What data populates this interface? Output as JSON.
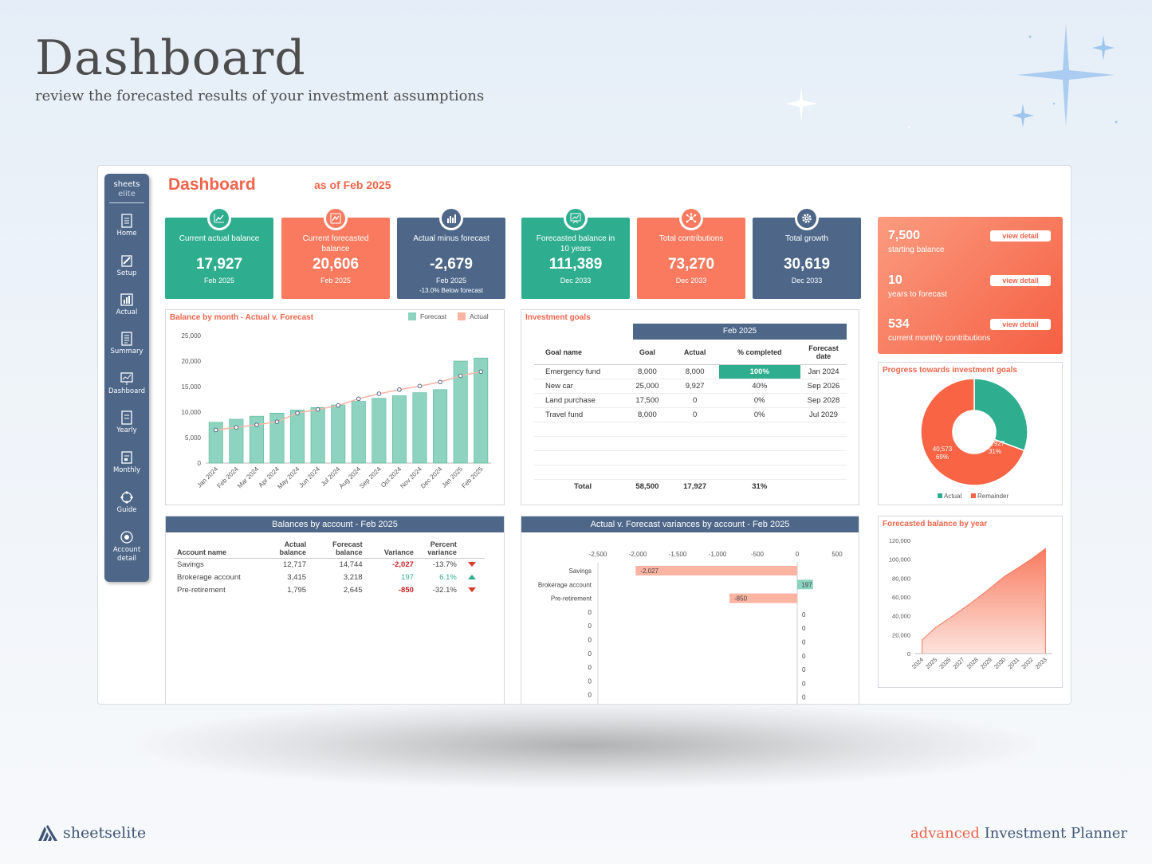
{
  "hero": {
    "title": "Dashboard",
    "subtitle": "review the forecasted results of your investment assumptions"
  },
  "sidebar": {
    "brand_top": "sheets",
    "brand_bottom": "elite",
    "items": [
      {
        "label": "Home",
        "icon": "home-icon"
      },
      {
        "label": "Setup",
        "icon": "setup-icon"
      },
      {
        "label": "Actual",
        "icon": "actual-icon"
      },
      {
        "label": "Summary",
        "icon": "summary-icon"
      },
      {
        "label": "Dashboard",
        "icon": "dashboard-icon"
      },
      {
        "label": "Yearly",
        "icon": "yearly-icon"
      },
      {
        "label": "Monthly",
        "icon": "monthly-icon"
      },
      {
        "label": "Guide",
        "icon": "guide-icon"
      },
      {
        "label": "Account detail",
        "icon": "account-detail-icon"
      }
    ]
  },
  "header": {
    "title": "Dashboard",
    "as_of": "as of Feb 2025"
  },
  "kpis": [
    {
      "label": "Current actual balance",
      "value": "17,927",
      "date": "Feb 2025",
      "note": "",
      "color": "#2fae8f",
      "icon": "line-chart-icon"
    },
    {
      "label": "Current forecasted balance",
      "value": "20,606",
      "date": "Feb 2025",
      "note": "",
      "color": "#f97a5e",
      "icon": "trend-chart-icon"
    },
    {
      "label": "Actual minus forecast",
      "value": "-2,679",
      "date": "Feb 2025",
      "note": "-13.0%   Below forecast",
      "color": "#4e6789",
      "icon": "bar-chart-icon"
    },
    {
      "label": "Forecasted balance in 10 years",
      "value": "111,389",
      "date": "Dec 2033",
      "note": "",
      "color": "#2fae8f",
      "icon": "presentation-icon"
    },
    {
      "label": "Total contributions",
      "value": "73,270",
      "date": "Dec 2033",
      "note": "",
      "color": "#f97a5e",
      "icon": "network-icon"
    },
    {
      "label": "Total growth",
      "value": "30,619",
      "date": "Dec 2033",
      "note": "",
      "color": "#4e6789",
      "icon": "gear-icon"
    }
  ],
  "info_card": {
    "rows": [
      {
        "value": "7,500",
        "label": "starting balance",
        "button": "view detail"
      },
      {
        "value": "10",
        "label": "years to forecast",
        "button": "view detail"
      },
      {
        "value": "534",
        "label": "current monthly contributions",
        "button": "view detail"
      }
    ]
  },
  "balance_chart": {
    "title": "Balance by month - Actual v. Forecast",
    "legend": [
      "Forecast",
      "Actual"
    ]
  },
  "goals": {
    "title": "Investment goals",
    "period": "Feb 2025",
    "headers": [
      "Goal name",
      "Goal",
      "Actual",
      "% completed",
      "Forecast date"
    ],
    "rows": [
      {
        "name": "Emergency fund",
        "goal": "8,000",
        "actual": "8,000",
        "pct": "100%",
        "date": "Jan 2024"
      },
      {
        "name": "New car",
        "goal": "25,000",
        "actual": "9,927",
        "pct": "40%",
        "date": "Sep 2026"
      },
      {
        "name": "Land purchase",
        "goal": "17,500",
        "actual": "0",
        "pct": "0%",
        "date": "Sep 2028"
      },
      {
        "name": "Travel fund",
        "goal": "8,000",
        "actual": "0",
        "pct": "0%",
        "date": "Jul 2029"
      }
    ],
    "total": {
      "label": "Total",
      "goal": "58,500",
      "actual": "17,927",
      "pct": "31%"
    }
  },
  "progress": {
    "title": "Progress towards investment goals",
    "actual_label": "17,927",
    "actual_pct": "31%",
    "remainder_label": "40,573",
    "remainder_pct": "69%",
    "legend": [
      "Actual",
      "Remainder"
    ]
  },
  "accounts": {
    "title": "Balances by account - Feb 2025",
    "headers": [
      "Account name",
      "Actual balance",
      "Forecast balance",
      "Variance",
      "Percent variance"
    ],
    "rows": [
      {
        "name": "Savings",
        "actual": "12,717",
        "forecast": "14,744",
        "variance": "-2,027",
        "pct": "-13.7%",
        "dir": "down"
      },
      {
        "name": "Brokerage account",
        "actual": "3,415",
        "forecast": "3,218",
        "variance": "197",
        "pct": "6.1%",
        "dir": "up"
      },
      {
        "name": "Pre-retirement",
        "actual": "1,795",
        "forecast": "2,645",
        "variance": "-850",
        "pct": "-32.1%",
        "dir": "down"
      }
    ]
  },
  "variance_chart": {
    "title": "Actual v. Forecast variances by account - Feb 2025",
    "zero_label": "0"
  },
  "yearly_chart": {
    "title": "Forecasted balance by year"
  },
  "footer": {
    "brand_a": "sheets",
    "brand_b": "elite",
    "right_accent": "advanced",
    "right_text": " Investment Planner"
  },
  "colors": {
    "green": "#2fae8f",
    "coral": "#f97a5e",
    "slate": "#4e6789",
    "accent": "#f0654b"
  },
  "chart_data": [
    {
      "type": "bar",
      "title": "Balance by month - Actual v. Forecast",
      "categories": [
        "Jan 2024",
        "Feb 2024",
        "Mar 2024",
        "Apr 2024",
        "May 2024",
        "Jun 2024",
        "Jul 2024",
        "Aug 2024",
        "Sep 2024",
        "Oct 2024",
        "Nov 2024",
        "Dec 2024",
        "Jan 2025",
        "Feb 2025"
      ],
      "series": [
        {
          "name": "Forecast",
          "kind": "bar",
          "values": [
            8000,
            8600,
            9200,
            9800,
            10400,
            10900,
            11400,
            12100,
            12700,
            13200,
            13800,
            14400,
            20000,
            20606
          ]
        },
        {
          "name": "Actual",
          "kind": "line",
          "values": [
            6500,
            7000,
            7500,
            8100,
            9800,
            10500,
            11300,
            12600,
            13600,
            14400,
            15100,
            15900,
            17100,
            17927
          ]
        }
      ],
      "ylim": [
        0,
        25000
      ],
      "yticks": [
        0,
        5000,
        10000,
        15000,
        20000,
        25000
      ]
    },
    {
      "type": "pie",
      "title": "Progress towards investment goals",
      "labels": [
        "Actual",
        "Remainder"
      ],
      "values": [
        17927,
        40573
      ]
    },
    {
      "type": "bar",
      "orientation": "horizontal",
      "title": "Actual v. Forecast variances by account - Feb 2025",
      "categories": [
        "Savings",
        "Brokerage account",
        "Pre-retirement"
      ],
      "values": [
        -2027,
        197,
        -850
      ],
      "xlim": [
        -2500,
        500
      ],
      "xticks": [
        -2500,
        -2000,
        -1500,
        -1000,
        -500,
        0,
        500
      ]
    },
    {
      "type": "area",
      "title": "Forecasted balance by year",
      "categories": [
        "2024",
        "2025",
        "2026",
        "2027",
        "2028",
        "2029",
        "2030",
        "2031",
        "2032",
        "2033"
      ],
      "values": [
        14400,
        27800,
        37500,
        47700,
        58400,
        69800,
        81700,
        90900,
        100500,
        111389
      ],
      "ylim": [
        0,
        120000
      ],
      "yticks": [
        0,
        20000,
        40000,
        60000,
        80000,
        100000,
        120000
      ]
    }
  ]
}
